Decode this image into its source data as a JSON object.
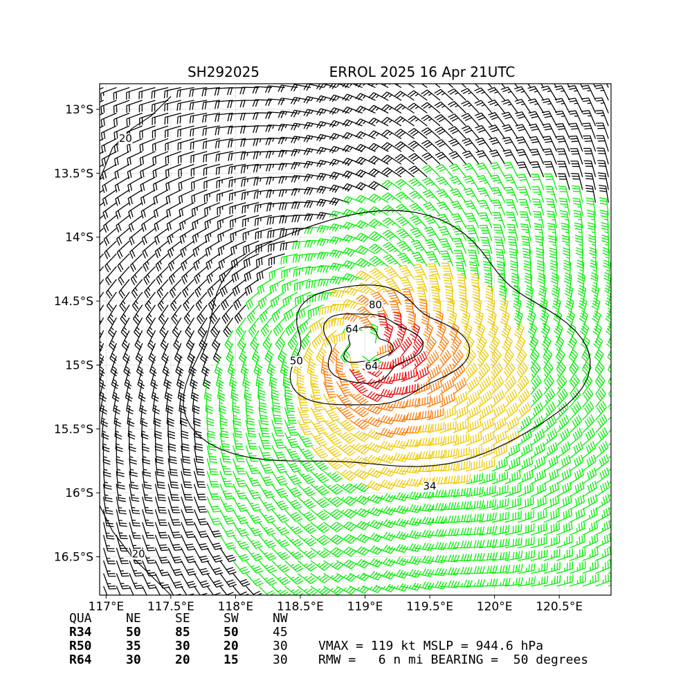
{
  "chart_data": {
    "type": "wind barb map",
    "title_left": "SH292025",
    "title_right": "ERROL 2025 16 Apr 21UTC",
    "xlim": [
      116.95,
      120.9
    ],
    "ylim": [
      -16.8,
      -12.8
    ],
    "x_ticks": [
      117,
      117.5,
      118,
      118.5,
      119,
      119.5,
      120,
      120.5
    ],
    "x_tick_labels": [
      "117°E",
      "117.5°E",
      "118°E",
      "118.5°E",
      "119°E",
      "119.5°E",
      "120°E",
      "120.5°E"
    ],
    "y_ticks": [
      -13,
      -13.5,
      -14,
      -14.5,
      -15,
      -15.5,
      -16,
      -16.5
    ],
    "y_tick_labels": [
      "13°S",
      "13.5°S",
      "14°S",
      "14.5°S",
      "15°S",
      "15.5°S",
      "16°S",
      "16.5°S"
    ],
    "grid": true,
    "center": {
      "lon": 119.0,
      "lat": -14.85
    },
    "contour_levels": [
      20,
      34,
      50,
      64,
      80
    ],
    "contour_labels": [
      {
        "text": "20",
        "lon": 117.15,
        "lat": -13.25
      },
      {
        "text": "20",
        "lon": 117.25,
        "lat": -16.5
      },
      {
        "text": "34",
        "lon": 119.5,
        "lat": -15.97
      },
      {
        "text": "50",
        "lon": 118.47,
        "lat": -14.99
      },
      {
        "text": "64",
        "lon": 118.9,
        "lat": -14.74
      },
      {
        "text": "64",
        "lon": 119.05,
        "lat": -15.03
      },
      {
        "text": "80",
        "lon": 119.08,
        "lat": -14.55
      }
    ],
    "wind_colors": {
      "below_34": "#000000",
      "34_to_50": "#00ee00",
      "50_to_64": "#eec900",
      "64_to_80": "#ff7700",
      "80_plus": "#ee0000"
    }
  },
  "table": {
    "header": [
      "QUA",
      "NE",
      "SE",
      "SW",
      "NW"
    ],
    "rows": [
      [
        "R34",
        "50",
        "85",
        "50",
        "45"
      ],
      [
        "R50",
        "35",
        "30",
        "20",
        "30"
      ],
      [
        "R64",
        "30",
        "20",
        "15",
        "30"
      ]
    ],
    "info_line1": "VMAX = 119 kt MSLP = 944.6 hPa",
    "info_line2": "RMW =   6 n mi BEARING =  50 degrees"
  }
}
